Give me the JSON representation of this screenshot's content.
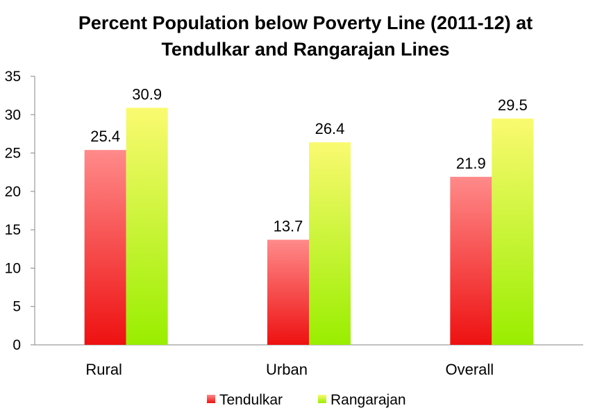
{
  "chart_data": {
    "type": "bar",
    "title_line1": "Percent Population below Poverty Line (2011-12) at",
    "title_line2": "Tendulkar and Rangarajan Lines",
    "categories": [
      "Rural",
      "Urban",
      "Overall"
    ],
    "series": [
      {
        "name": "Tendulkar",
        "values": [
          25.4,
          13.7,
          21.9
        ],
        "color_top": "#ff8a8a",
        "color_bottom": "#ee1111"
      },
      {
        "name": "Rangarajan",
        "values": [
          30.9,
          26.4,
          29.5
        ],
        "color_top": "#fafa70",
        "color_bottom": "#99ee00"
      }
    ],
    "data_labels": [
      [
        "25.4",
        "13.7",
        "21.9"
      ],
      [
        "30.9",
        "26.4",
        "29.5"
      ]
    ],
    "ylim": [
      0,
      35
    ],
    "yticks": [
      0,
      5,
      10,
      15,
      20,
      25,
      30,
      35
    ],
    "grid": false,
    "legend": "bottom"
  }
}
